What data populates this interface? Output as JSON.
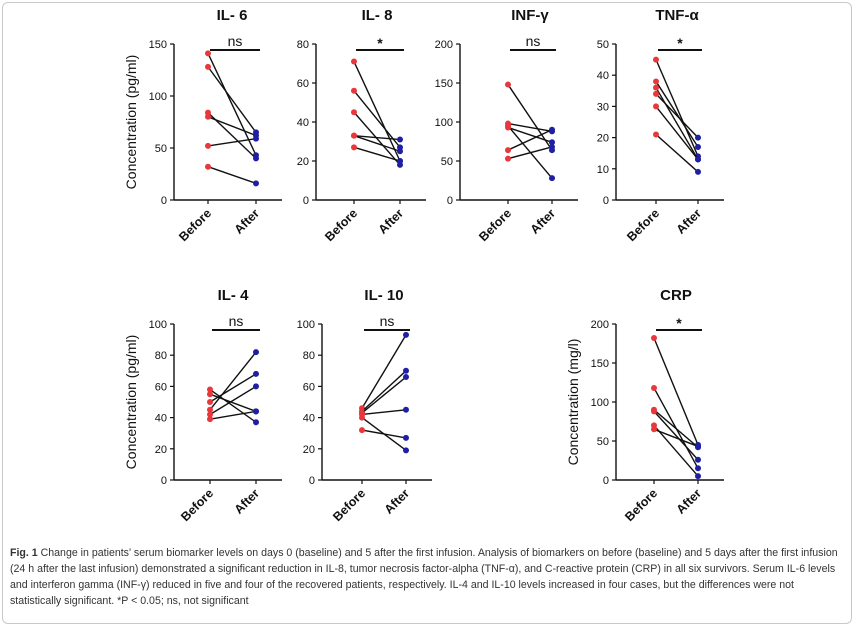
{
  "caption": {
    "label": "Fig. 1",
    "text": "Change in patients' serum biomarker levels on days 0 (baseline) and 5 after the first infusion. Analysis of biomarkers on before (baseline) and 5 days after the first infusion (24 h after the last infusion) demonstrated a significant reduction in IL-8, tumor necrosis factor-alpha (TNF-α), and C-reactive protein (CRP) in all six survivors. Serum IL-6 levels and interferon gamma (INF-γ) reduced in five and four of the recovered patients, respectively. IL-4 and IL-10 levels increased in four cases, but the differences were not statistically significant. *P < 0.05; ns, not significant"
  },
  "colors": {
    "before": "#e8383b",
    "after": "#1f1fa3",
    "line": "#111111"
  },
  "chart_data": [
    {
      "type": "line",
      "title": "IL- 6",
      "ylabel": "Concentration (pg/ml)",
      "categories": [
        "Before",
        "After"
      ],
      "ylim": [
        0,
        150
      ],
      "yticks": [
        "0",
        "50",
        "100",
        "150"
      ],
      "significance": "ns",
      "series": [
        {
          "name": "patient-1",
          "values": [
            141,
            43
          ]
        },
        {
          "name": "patient-2",
          "values": [
            128,
            65
          ]
        },
        {
          "name": "patient-3",
          "values": [
            84,
            40
          ]
        },
        {
          "name": "patient-4",
          "values": [
            80,
            62
          ]
        },
        {
          "name": "patient-5",
          "values": [
            52,
            59
          ]
        },
        {
          "name": "patient-6",
          "values": [
            32,
            16
          ]
        }
      ]
    },
    {
      "type": "line",
      "title": "IL- 8",
      "ylabel": "",
      "categories": [
        "Before",
        "After"
      ],
      "ylim": [
        0,
        80
      ],
      "yticks": [
        "0",
        "20",
        "40",
        "60",
        "80"
      ],
      "significance": "*",
      "series": [
        {
          "name": "patient-1",
          "values": [
            71,
            20
          ]
        },
        {
          "name": "patient-2",
          "values": [
            56,
            27
          ]
        },
        {
          "name": "patient-3",
          "values": [
            45,
            18
          ]
        },
        {
          "name": "patient-4",
          "values": [
            33,
            31
          ]
        },
        {
          "name": "patient-5",
          "values": [
            33,
            25
          ]
        },
        {
          "name": "patient-6",
          "values": [
            27,
            20
          ]
        }
      ]
    },
    {
      "type": "line",
      "title": "INF-γ",
      "ylabel": "",
      "categories": [
        "Before",
        "After"
      ],
      "ylim": [
        0,
        200
      ],
      "yticks": [
        "0",
        "50",
        "100",
        "150",
        "200"
      ],
      "significance": "ns",
      "series": [
        {
          "name": "patient-1",
          "values": [
            148,
            64
          ]
        },
        {
          "name": "patient-2",
          "values": [
            98,
            88
          ]
        },
        {
          "name": "patient-3",
          "values": [
            95,
            28
          ]
        },
        {
          "name": "patient-4",
          "values": [
            93,
            74
          ]
        },
        {
          "name": "patient-5",
          "values": [
            64,
            90
          ]
        },
        {
          "name": "patient-6",
          "values": [
            53,
            68
          ]
        }
      ]
    },
    {
      "type": "line",
      "title": "TNF-α",
      "ylabel": "",
      "categories": [
        "Before",
        "After"
      ],
      "ylim": [
        0,
        50
      ],
      "yticks": [
        "0",
        "10",
        "20",
        "30",
        "40",
        "50"
      ],
      "significance": "*",
      "series": [
        {
          "name": "patient-1",
          "values": [
            45,
            14
          ]
        },
        {
          "name": "patient-2",
          "values": [
            38,
            17
          ]
        },
        {
          "name": "patient-3",
          "values": [
            36,
            13
          ]
        },
        {
          "name": "patient-4",
          "values": [
            34,
            20
          ]
        },
        {
          "name": "patient-5",
          "values": [
            30,
            13
          ]
        },
        {
          "name": "patient-6",
          "values": [
            21,
            9
          ]
        }
      ]
    },
    {
      "type": "line",
      "title": "IL- 4",
      "ylabel": "Concentration (pg/ml)",
      "categories": [
        "Before",
        "After"
      ],
      "ylim": [
        0,
        100
      ],
      "yticks": [
        "0",
        "20",
        "40",
        "60",
        "80",
        "100"
      ],
      "significance": "ns",
      "series": [
        {
          "name": "patient-1",
          "values": [
            58,
            37
          ]
        },
        {
          "name": "patient-2",
          "values": [
            55,
            44
          ]
        },
        {
          "name": "patient-3",
          "values": [
            50,
            68
          ]
        },
        {
          "name": "patient-4",
          "values": [
            45,
            82
          ]
        },
        {
          "name": "patient-5",
          "values": [
            42,
            60
          ]
        },
        {
          "name": "patient-6",
          "values": [
            39,
            44
          ]
        }
      ]
    },
    {
      "type": "line",
      "title": "IL- 10",
      "ylabel": "",
      "categories": [
        "Before",
        "After"
      ],
      "ylim": [
        0,
        100
      ],
      "yticks": [
        "0",
        "20",
        "40",
        "60",
        "80",
        "100"
      ],
      "significance": "ns",
      "series": [
        {
          "name": "patient-1",
          "values": [
            46,
            93
          ]
        },
        {
          "name": "patient-2",
          "values": [
            44,
            70
          ]
        },
        {
          "name": "patient-3",
          "values": [
            43,
            66
          ]
        },
        {
          "name": "patient-4",
          "values": [
            42,
            45
          ]
        },
        {
          "name": "patient-5",
          "values": [
            40,
            19
          ]
        },
        {
          "name": "patient-6",
          "values": [
            32,
            27
          ]
        }
      ]
    },
    {
      "type": "line",
      "title": "CRP",
      "ylabel": "Concentration (mg/l)",
      "categories": [
        "Before",
        "After"
      ],
      "ylim": [
        0,
        200
      ],
      "yticks": [
        "0",
        "50",
        "100",
        "150",
        "200"
      ],
      "significance": "*",
      "series": [
        {
          "name": "patient-1",
          "values": [
            182,
            45
          ]
        },
        {
          "name": "patient-2",
          "values": [
            118,
            15
          ]
        },
        {
          "name": "patient-3",
          "values": [
            90,
            42
          ]
        },
        {
          "name": "patient-4",
          "values": [
            88,
            26
          ]
        },
        {
          "name": "patient-5",
          "values": [
            70,
            5
          ]
        },
        {
          "name": "patient-6",
          "values": [
            65,
            43
          ]
        }
      ]
    }
  ]
}
